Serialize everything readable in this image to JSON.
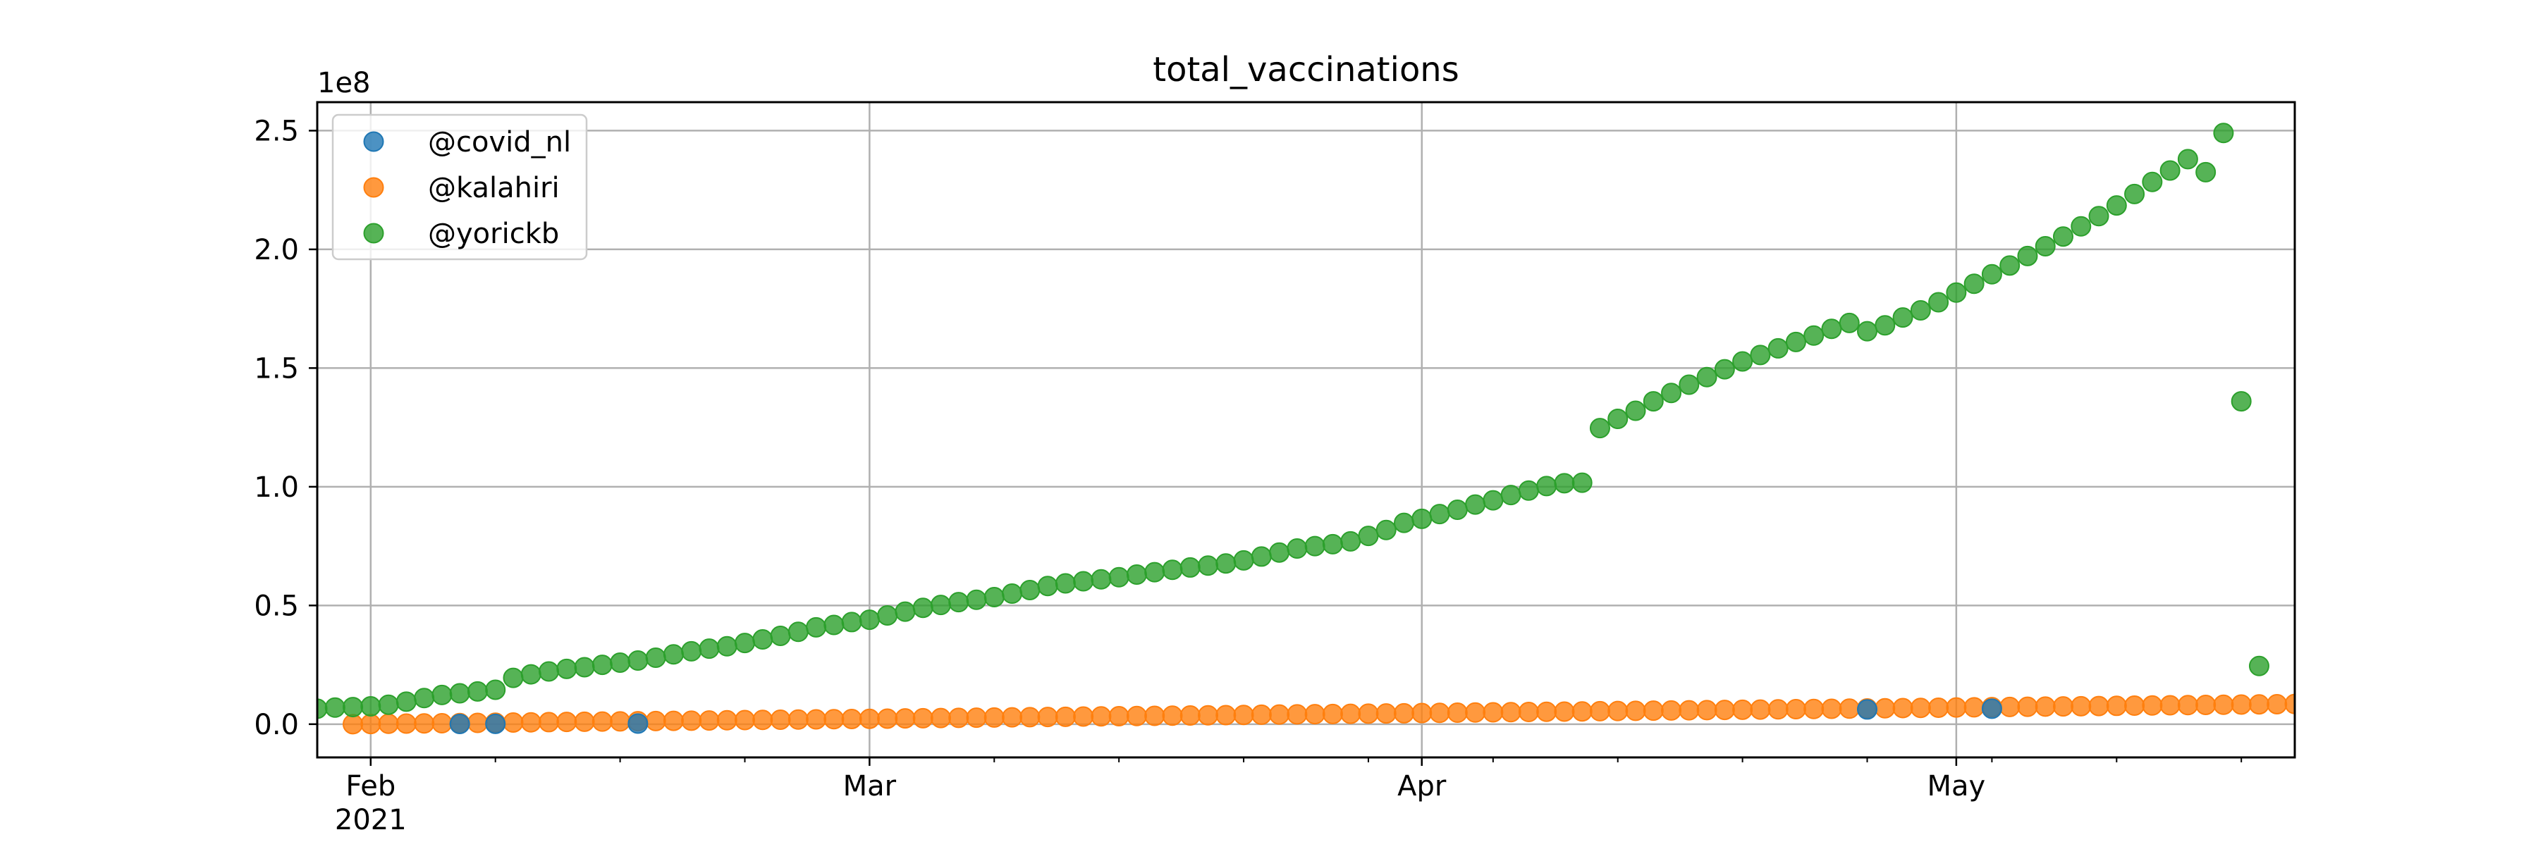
{
  "chart_data": {
    "type": "scatter",
    "title": "total_vaccinations",
    "xlabel": "",
    "ylabel": "",
    "y_offset_label": "1e8",
    "y_scale": 100000000,
    "x_start_date": "2021-01-29",
    "x_end_date": "2021-05-20",
    "x_ticks": [
      {
        "date": "2021-02-01",
        "label": "Feb",
        "sublabel": "2021"
      },
      {
        "date": "2021-03-01",
        "label": "Mar",
        "sublabel": ""
      },
      {
        "date": "2021-04-01",
        "label": "Apr",
        "sublabel": ""
      },
      {
        "date": "2021-05-01",
        "label": "May",
        "sublabel": ""
      }
    ],
    "y_ticks": [
      {
        "value": 0,
        "label": "0.0"
      },
      {
        "value": 50000000,
        "label": "0.5"
      },
      {
        "value": 100000000,
        "label": "1.0"
      },
      {
        "value": 150000000,
        "label": "1.5"
      },
      {
        "value": 200000000,
        "label": "2.0"
      },
      {
        "value": 250000000,
        "label": "2.5"
      }
    ],
    "ylim": [
      -14000000,
      262000000
    ],
    "grid": true,
    "legend_position": "top-left",
    "series": [
      {
        "name": "@covid_nl",
        "color": "#1f77b4",
        "points": [
          [
            "2021-02-06",
            100000
          ],
          [
            "2021-02-08",
            150000
          ],
          [
            "2021-02-16",
            250000
          ],
          [
            "2021-04-26",
            6200000
          ],
          [
            "2021-05-03",
            6500000
          ]
        ]
      },
      {
        "name": "@kalahiri",
        "color": "#ff7f0e",
        "start_date": "2021-01-31",
        "end_date": "2021-05-20",
        "start_value": 0,
        "end_value": 8500000
      },
      {
        "name": "@yorickb",
        "color": "#2ca02c",
        "points": [
          [
            "2021-01-29",
            6500000
          ],
          [
            "2021-01-30",
            7000000
          ],
          [
            "2021-01-31",
            7200000
          ],
          [
            "2021-02-01",
            7500000
          ],
          [
            "2021-02-02",
            8200000
          ],
          [
            "2021-02-03",
            9500000
          ],
          [
            "2021-02-04",
            11000000
          ],
          [
            "2021-02-05",
            12300000
          ],
          [
            "2021-02-06",
            13000000
          ],
          [
            "2021-02-07",
            13800000
          ],
          [
            "2021-02-08",
            14500000
          ],
          [
            "2021-02-09",
            19500000
          ],
          [
            "2021-02-10",
            21000000
          ],
          [
            "2021-02-11",
            22200000
          ],
          [
            "2021-02-12",
            23300000
          ],
          [
            "2021-02-13",
            24000000
          ],
          [
            "2021-02-14",
            25000000
          ],
          [
            "2021-02-15",
            25900000
          ],
          [
            "2021-02-16",
            26800000
          ],
          [
            "2021-02-17",
            28000000
          ],
          [
            "2021-02-18",
            29400000
          ],
          [
            "2021-02-19",
            30700000
          ],
          [
            "2021-02-20",
            31800000
          ],
          [
            "2021-02-21",
            32800000
          ],
          [
            "2021-02-22",
            34200000
          ],
          [
            "2021-02-23",
            35700000
          ],
          [
            "2021-02-24",
            37200000
          ],
          [
            "2021-02-25",
            38900000
          ],
          [
            "2021-02-26",
            40800000
          ],
          [
            "2021-02-27",
            41800000
          ],
          [
            "2021-02-28",
            43000000
          ],
          [
            "2021-03-01",
            44000000
          ],
          [
            "2021-03-02",
            45800000
          ],
          [
            "2021-03-03",
            47400000
          ],
          [
            "2021-03-04",
            49000000
          ],
          [
            "2021-03-05",
            50200000
          ],
          [
            "2021-03-06",
            51400000
          ],
          [
            "2021-03-07",
            52400000
          ],
          [
            "2021-03-08",
            53500000
          ],
          [
            "2021-03-09",
            55000000
          ],
          [
            "2021-03-10",
            56500000
          ],
          [
            "2021-03-11",
            58200000
          ],
          [
            "2021-03-12",
            59300000
          ],
          [
            "2021-03-13",
            60200000
          ],
          [
            "2021-03-14",
            61000000
          ],
          [
            "2021-03-15",
            61900000
          ],
          [
            "2021-03-16",
            63000000
          ],
          [
            "2021-03-17",
            64000000
          ],
          [
            "2021-03-18",
            65000000
          ],
          [
            "2021-03-19",
            66000000
          ],
          [
            "2021-03-20",
            66800000
          ],
          [
            "2021-03-21",
            67700000
          ],
          [
            "2021-03-22",
            69000000
          ],
          [
            "2021-03-23",
            70600000
          ],
          [
            "2021-03-24",
            72300000
          ],
          [
            "2021-03-25",
            74000000
          ],
          [
            "2021-03-26",
            75000000
          ],
          [
            "2021-03-27",
            75800000
          ],
          [
            "2021-03-28",
            77000000
          ],
          [
            "2021-03-29",
            79300000
          ],
          [
            "2021-03-30",
            81800000
          ],
          [
            "2021-03-31",
            84800000
          ],
          [
            "2021-04-01",
            86500000
          ],
          [
            "2021-04-02",
            88500000
          ],
          [
            "2021-04-03",
            90300000
          ],
          [
            "2021-04-04",
            92500000
          ],
          [
            "2021-04-05",
            94300000
          ],
          [
            "2021-04-06",
            96500000
          ],
          [
            "2021-04-07",
            98400000
          ],
          [
            "2021-04-08",
            100300000
          ],
          [
            "2021-04-09",
            101500000
          ],
          [
            "2021-04-10",
            101700000
          ],
          [
            "2021-04-11",
            124700000
          ],
          [
            "2021-04-12",
            128600000
          ],
          [
            "2021-04-13",
            132000000
          ],
          [
            "2021-04-14",
            136000000
          ],
          [
            "2021-04-15",
            139500000
          ],
          [
            "2021-04-16",
            143000000
          ],
          [
            "2021-04-17",
            146200000
          ],
          [
            "2021-04-18",
            149500000
          ],
          [
            "2021-04-19",
            152800000
          ],
          [
            "2021-04-20",
            155500000
          ],
          [
            "2021-04-21",
            158300000
          ],
          [
            "2021-04-22",
            161000000
          ],
          [
            "2021-04-23",
            163700000
          ],
          [
            "2021-04-24",
            166500000
          ],
          [
            "2021-04-25",
            169000000
          ],
          [
            "2021-04-26",
            165500000
          ],
          [
            "2021-04-27",
            168000000
          ],
          [
            "2021-04-28",
            171300000
          ],
          [
            "2021-04-29",
            174300000
          ],
          [
            "2021-04-30",
            177700000
          ],
          [
            "2021-05-01",
            181800000
          ],
          [
            "2021-05-02",
            185500000
          ],
          [
            "2021-05-03",
            189500000
          ],
          [
            "2021-05-04",
            193200000
          ],
          [
            "2021-05-05",
            197200000
          ],
          [
            "2021-05-06",
            201300000
          ],
          [
            "2021-05-07",
            205400000
          ],
          [
            "2021-05-08",
            209700000
          ],
          [
            "2021-05-09",
            214000000
          ],
          [
            "2021-05-10",
            218500000
          ],
          [
            "2021-05-11",
            223300000
          ],
          [
            "2021-05-12",
            228400000
          ],
          [
            "2021-05-13",
            233200000
          ],
          [
            "2021-05-14",
            238000000
          ],
          [
            "2021-05-15",
            232500000
          ],
          [
            "2021-05-16",
            249000000
          ],
          [
            "2021-05-17",
            136000000
          ],
          [
            "2021-05-18",
            24500000
          ]
        ]
      }
    ]
  }
}
